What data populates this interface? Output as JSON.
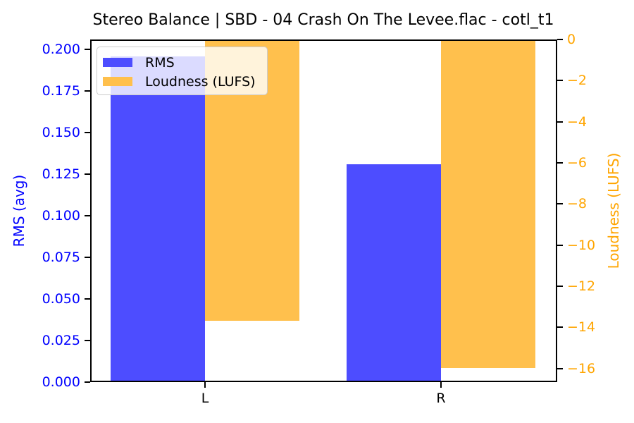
{
  "chart_data": {
    "type": "bar",
    "title": "Stereo Balance | SBD - 04 Crash On The Levee.flac - cotl_t1",
    "categories": [
      "L",
      "R"
    ],
    "series": [
      {
        "name": "RMS",
        "axis": "left",
        "color": "#4D4DFF",
        "values": [
          0.196,
          0.131
        ]
      },
      {
        "name": "Loudness (LUFS)",
        "axis": "right",
        "color": "#FFC04D",
        "values": [
          -13.6,
          -15.9
        ]
      }
    ],
    "left_axis": {
      "label": "RMS (avg)",
      "color": "#0000FF",
      "range": [
        0,
        0.206
      ],
      "ticks": [
        {
          "value": 0.0,
          "label": "0.000"
        },
        {
          "value": 0.025,
          "label": "0.025"
        },
        {
          "value": 0.05,
          "label": "0.050"
        },
        {
          "value": 0.075,
          "label": "0.075"
        },
        {
          "value": 0.1,
          "label": "0.100"
        },
        {
          "value": 0.125,
          "label": "0.125"
        },
        {
          "value": 0.15,
          "label": "0.150"
        },
        {
          "value": 0.175,
          "label": "0.175"
        },
        {
          "value": 0.2,
          "label": "0.200"
        }
      ]
    },
    "right_axis": {
      "label": "Loudness (LUFS)",
      "color": "#FFA500",
      "range": [
        -16.66,
        0
      ],
      "ticks": [
        {
          "value": 0,
          "label": "0"
        },
        {
          "value": -2,
          "label": "−2"
        },
        {
          "value": -4,
          "label": "−4"
        },
        {
          "value": -6,
          "label": "−6"
        },
        {
          "value": -8,
          "label": "−8"
        },
        {
          "value": -10,
          "label": "−10"
        },
        {
          "value": -12,
          "label": "−12"
        },
        {
          "value": -14,
          "label": "−14"
        },
        {
          "value": -16,
          "label": "−16"
        }
      ]
    },
    "legend": {
      "position": "upper-left"
    },
    "grid": false
  }
}
